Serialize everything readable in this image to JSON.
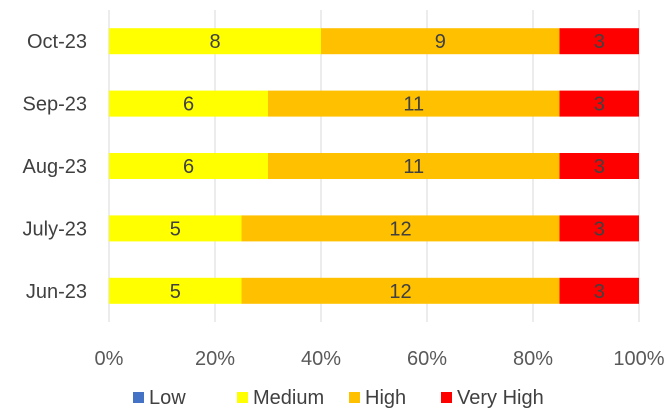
{
  "chart_data": {
    "type": "bar",
    "orientation": "horizontal",
    "stacked": "100%",
    "title": "",
    "xlabel": "",
    "ylabel": "",
    "categories": [
      "Oct-23",
      "Sep-23",
      "Aug-23",
      "July-23",
      "Jun-23"
    ],
    "series": [
      {
        "name": "Low",
        "color": "#4472C4",
        "values": [
          0,
          0,
          0,
          0,
          0
        ]
      },
      {
        "name": "Medium",
        "color": "#FFFF00",
        "values": [
          8,
          6,
          6,
          5,
          5
        ]
      },
      {
        "name": "High",
        "color": "#FFC000",
        "values": [
          9,
          11,
          11,
          12,
          12
        ]
      },
      {
        "name": "Very High",
        "color": "#FF0000",
        "values": [
          3,
          3,
          3,
          3,
          3
        ]
      }
    ],
    "x_ticks": [
      "0%",
      "20%",
      "40%",
      "60%",
      "80%",
      "100%"
    ],
    "xlim": [
      0,
      100
    ],
    "grid": true,
    "legend": "bottom"
  }
}
